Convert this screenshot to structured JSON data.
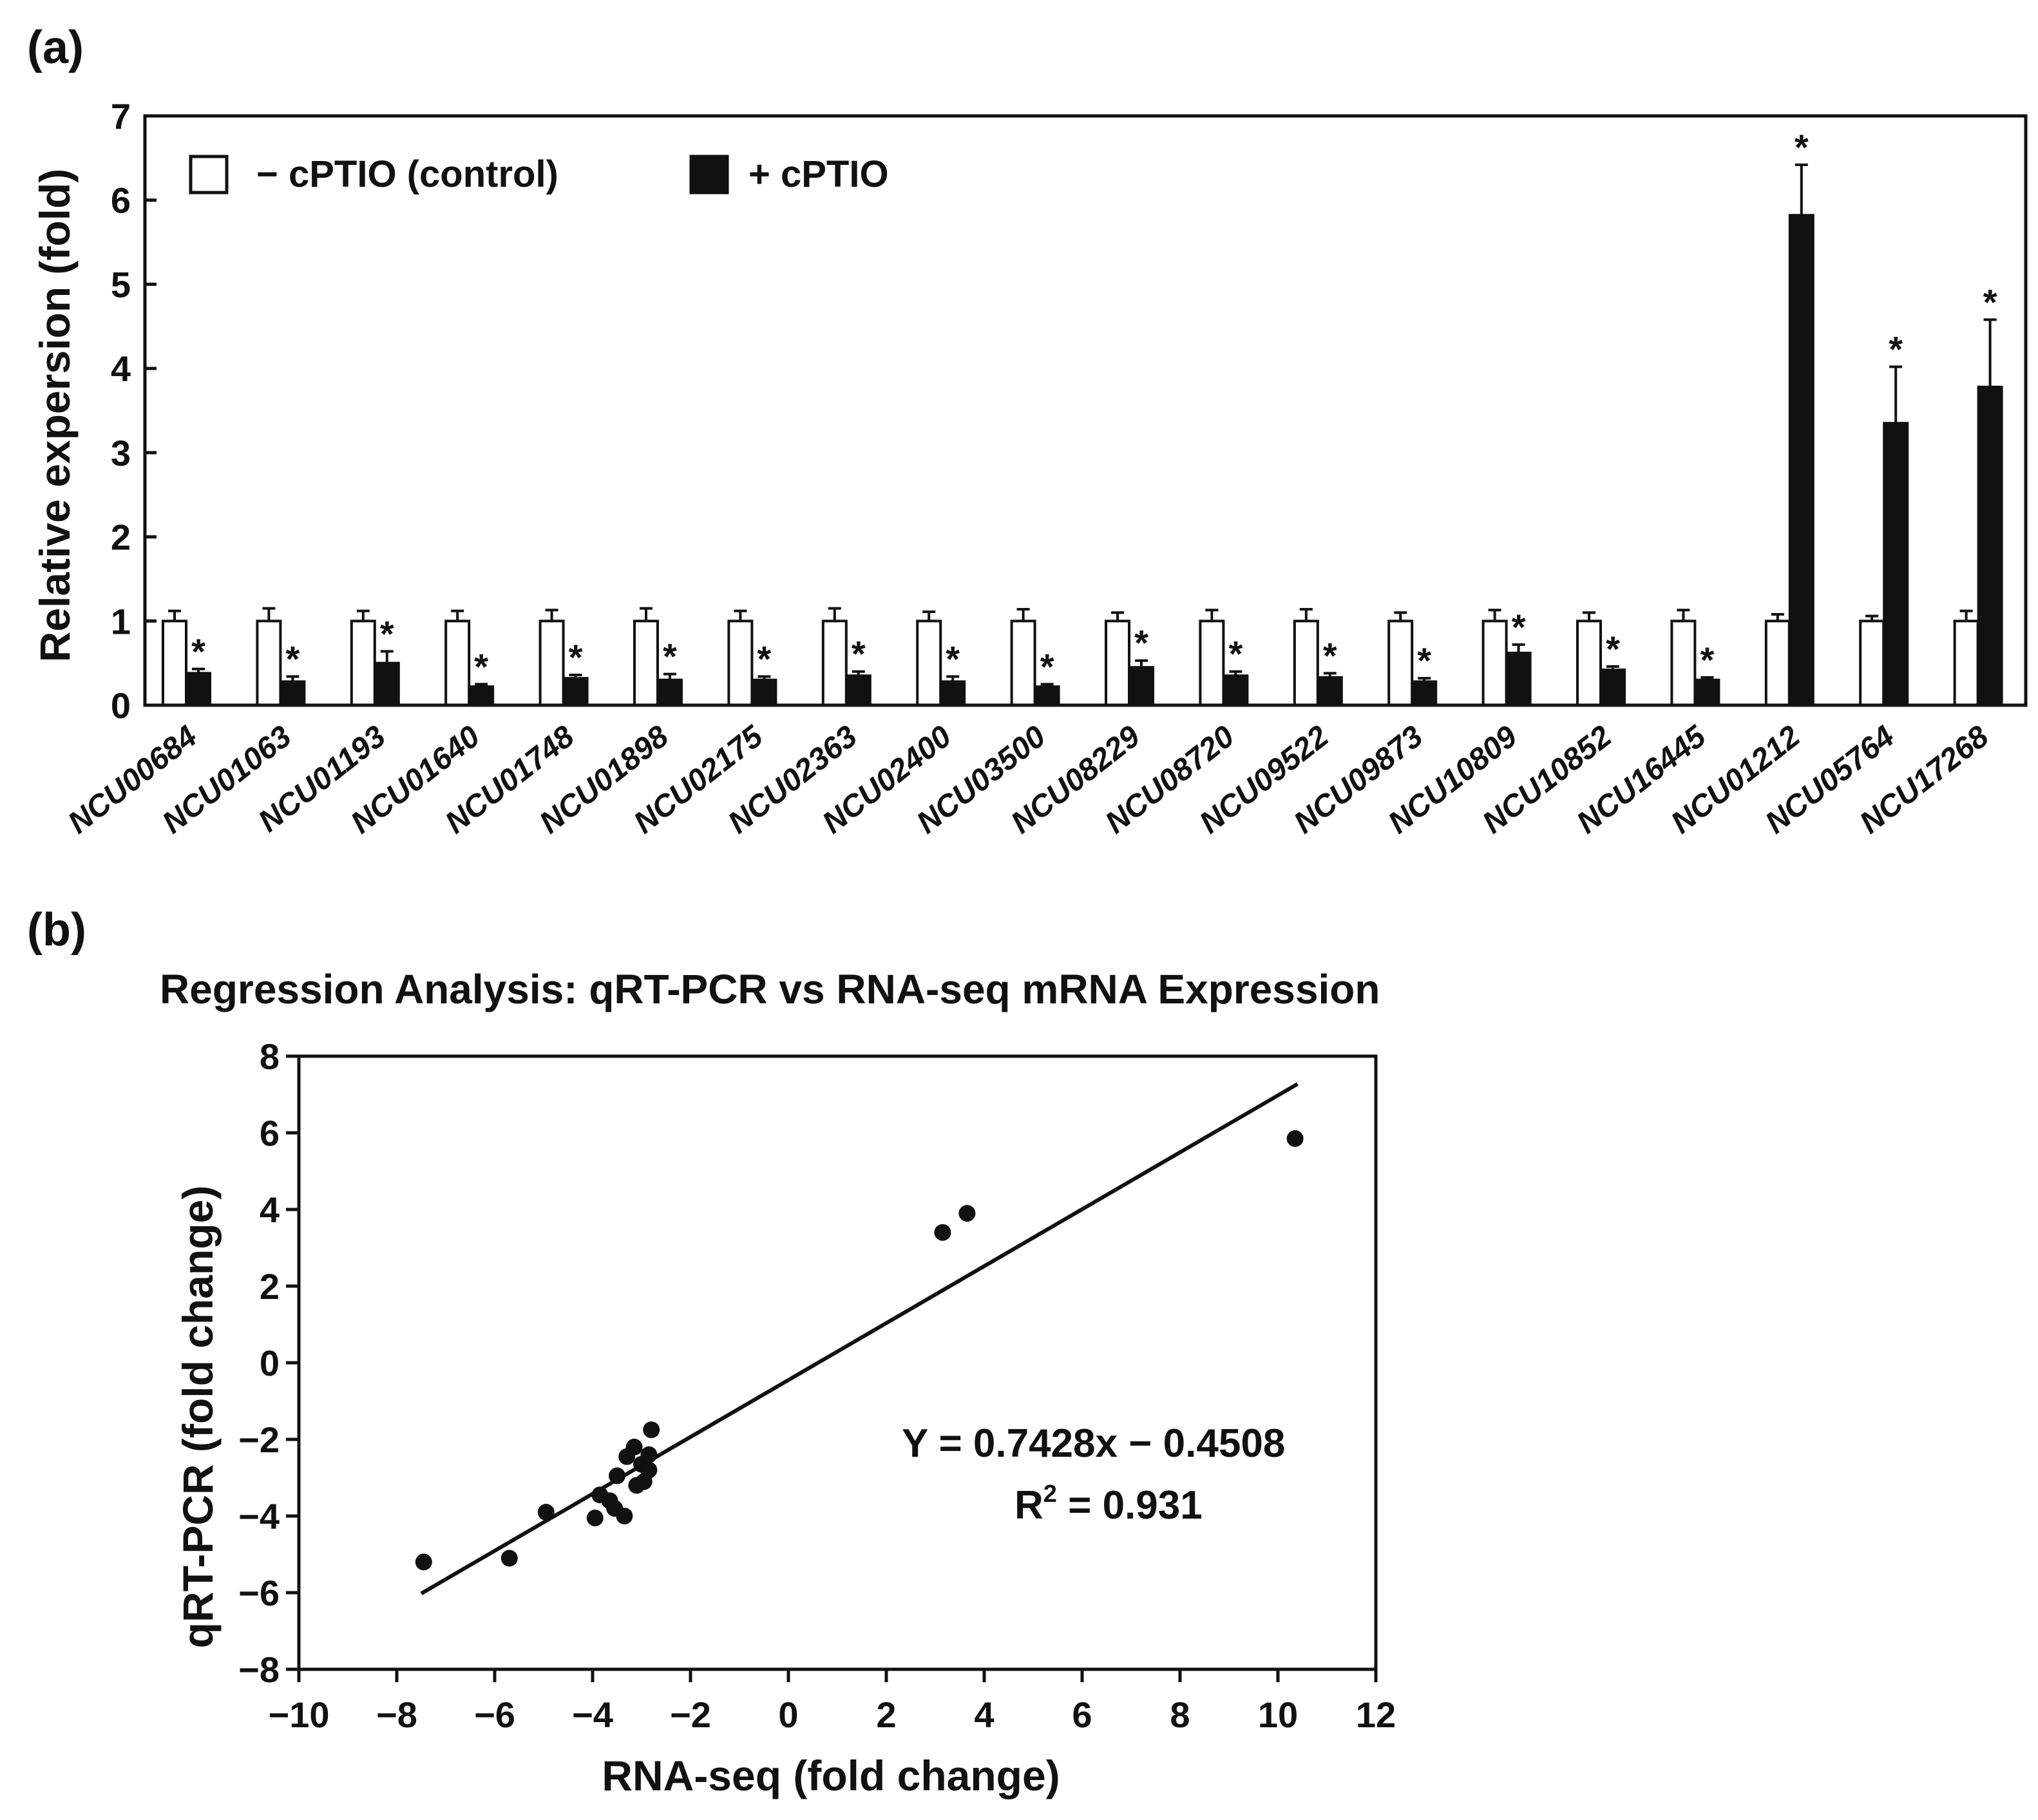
{
  "chart_data": [
    {
      "type": "bar",
      "panel_label": "(a)",
      "title": "",
      "xlabel": "",
      "ylabel": "Relative expersion (fold)",
      "ylim": [
        0,
        7
      ],
      "yticks": [
        0,
        1,
        2,
        3,
        4,
        5,
        6,
        7
      ],
      "legend_position": "top-left",
      "categories": [
        "NCU00684",
        "NCU01063",
        "NCU01193",
        "NCU01640",
        "NCU01748",
        "NCU01898",
        "NCU02175",
        "NCU02363",
        "NCU02400",
        "NCU03500",
        "NCU08229",
        "NCU08720",
        "NCU09522",
        "NCU09873",
        "NCU10809",
        "NCU10852",
        "NCU16445",
        "NCU01212",
        "NCU05764",
        "NCU17268"
      ],
      "series": [
        {
          "name": "− cPTIO (control)",
          "color": "#ffffff",
          "values": [
            1,
            1,
            1,
            1,
            1,
            1,
            1,
            1,
            1,
            1,
            1,
            1,
            1,
            1,
            1,
            1,
            1,
            1,
            1,
            1
          ],
          "errors": [
            0.12,
            0.15,
            0.12,
            0.12,
            0.13,
            0.15,
            0.12,
            0.15,
            0.11,
            0.14,
            0.1,
            0.13,
            0.14,
            0.1,
            0.13,
            0.1,
            0.13,
            0.08,
            0.06,
            0.12
          ]
        },
        {
          "name": "+ cPTIO",
          "color": "#111111",
          "values": [
            0.38,
            0.28,
            0.5,
            0.22,
            0.32,
            0.3,
            0.3,
            0.35,
            0.28,
            0.22,
            0.45,
            0.35,
            0.33,
            0.28,
            0.62,
            0.42,
            0.3,
            5.82,
            3.35,
            3.78
          ],
          "errors": [
            0.05,
            0.06,
            0.14,
            0.03,
            0.04,
            0.07,
            0.04,
            0.05,
            0.06,
            0.03,
            0.08,
            0.05,
            0.05,
            0.04,
            0.1,
            0.04,
            0.03,
            0.6,
            0.67,
            0.8
          ],
          "significant": [
            true,
            true,
            true,
            true,
            true,
            true,
            true,
            true,
            true,
            true,
            true,
            true,
            true,
            true,
            true,
            true,
            true,
            true,
            true,
            true
          ],
          "significance_label": "*"
        }
      ]
    },
    {
      "type": "scatter",
      "panel_label": "(b)",
      "title": "Regression Analysis: qRT-PCR vs RNA-seq mRNA Expression",
      "xlabel": "RNA-seq (fold change)",
      "ylabel": "qRT-PCR (fold change)",
      "xlim": [
        -10,
        12
      ],
      "ylim": [
        -8,
        8
      ],
      "xticks": [
        -10,
        -8,
        -6,
        -4,
        -2,
        0,
        2,
        4,
        6,
        8,
        10,
        12
      ],
      "yticks": [
        -8,
        -6,
        -4,
        -2,
        0,
        2,
        4,
        6,
        8
      ],
      "tick_text": {
        "-10": "−10",
        "-8": "−8",
        "-6": "−6",
        "-4": "−4",
        "-2": "−2",
        "0": "0",
        "2": "2",
        "4": "4",
        "6": "6",
        "8": "8",
        "10": "10",
        "12": "12"
      },
      "points": [
        {
          "x": -7.45,
          "y": -5.2
        },
        {
          "x": -5.7,
          "y": -5.1
        },
        {
          "x": -4.95,
          "y": -3.9
        },
        {
          "x": -3.95,
          "y": -4.05
        },
        {
          "x": -3.85,
          "y": -3.45
        },
        {
          "x": -3.65,
          "y": -3.6
        },
        {
          "x": -3.55,
          "y": -3.8
        },
        {
          "x": -3.5,
          "y": -2.95
        },
        {
          "x": -3.35,
          "y": -4.0
        },
        {
          "x": -3.3,
          "y": -2.45
        },
        {
          "x": -3.15,
          "y": -2.2
        },
        {
          "x": -3.1,
          "y": -3.2
        },
        {
          "x": -3.0,
          "y": -2.65
        },
        {
          "x": -2.95,
          "y": -3.1
        },
        {
          "x": -2.85,
          "y": -2.4
        },
        {
          "x": -2.85,
          "y": -2.8
        },
        {
          "x": -2.8,
          "y": -1.75
        },
        {
          "x": 3.15,
          "y": 3.4
        },
        {
          "x": 3.65,
          "y": 3.9
        },
        {
          "x": 10.35,
          "y": 5.85
        }
      ],
      "regression": {
        "slope": 0.7428,
        "intercept": -0.4508,
        "x_range": [
          -7.5,
          10.4
        ]
      },
      "equation": "Y = 0.7428x − 0.4508",
      "r2_prefix": "R",
      "r2_sup": "2",
      "r2_suffix": " = 0.931"
    }
  ],
  "colors": {
    "ink": "#111111",
    "bar_empty": "#ffffff",
    "bar_filled": "#111111"
  }
}
